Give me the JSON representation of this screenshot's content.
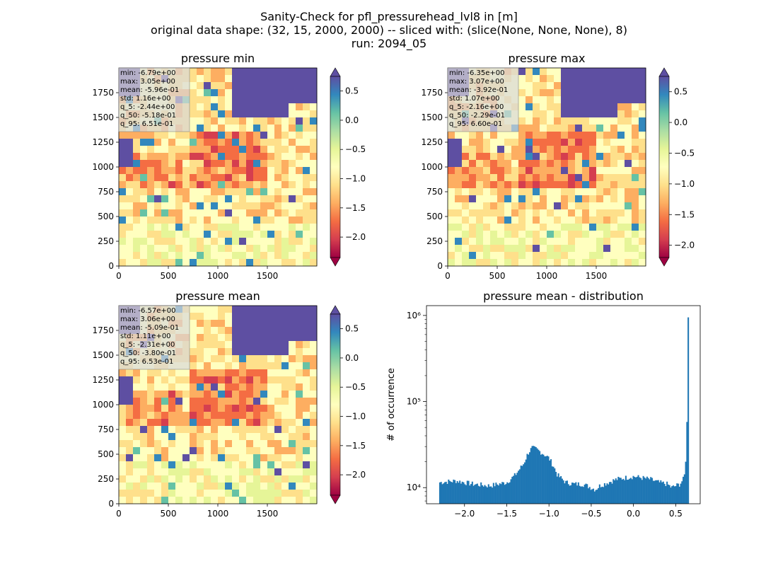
{
  "figure": {
    "suptitle_lines": [
      "Sanity-Check for pfl_pressurehead_lvl8 in [m]",
      "original data shape: (32, 15, 2000, 2000) -- sliced with: (slice(None, None, None), 8)",
      "run: 2094_05"
    ]
  },
  "chart_data": [
    {
      "type": "heatmap",
      "title": "pressure min",
      "colormap": "Spectral",
      "colorbar_ticks": [
        "0.5",
        "0.0",
        "−0.5",
        "−1.0",
        "−1.5",
        "−2.0"
      ],
      "colorbar_range": [
        -2.35,
        0.75
      ],
      "xticks": [
        "0",
        "500",
        "1000",
        "1500"
      ],
      "yticks": [
        "0",
        "250",
        "500",
        "750",
        "1000",
        "1250",
        "1500",
        "1750"
      ],
      "xlim": [
        0,
        2000
      ],
      "ylim": [
        0,
        2000
      ],
      "stats": [
        "min: -6.79e+00",
        "max: 3.05e+00",
        "mean: -5.96e-01",
        "std: 1.16e+00",
        "q_5: -2.44e+00",
        "q_50: -5.18e-01",
        "q_95: 6.51e-01"
      ]
    },
    {
      "type": "heatmap",
      "title": "pressure max",
      "colormap": "Spectral",
      "colorbar_ticks": [
        "0.5",
        "0.0",
        "−0.5",
        "−1.0",
        "−1.5",
        "−2.0"
      ],
      "colorbar_range": [
        -2.2,
        0.75
      ],
      "xticks": [
        "0",
        "500",
        "1000",
        "1500"
      ],
      "yticks": [
        "0",
        "250",
        "500",
        "750",
        "1000",
        "1250",
        "1500",
        "1750"
      ],
      "xlim": [
        0,
        2000
      ],
      "ylim": [
        0,
        2000
      ],
      "stats": [
        "min: -6.35e+00",
        "max: 3.07e+00",
        "mean: -3.92e-01",
        "std: 1.07e+00",
        "q_5: -2.16e+00",
        "q_50: -2.29e-01",
        "q_95: 6.60e-01"
      ]
    },
    {
      "type": "heatmap",
      "title": "pressure mean",
      "colormap": "Spectral",
      "colorbar_ticks": [
        "0.5",
        "0.0",
        "−0.5",
        "−1.0",
        "−1.5",
        "−2.0"
      ],
      "colorbar_range": [
        -2.35,
        0.75
      ],
      "xticks": [
        "0",
        "500",
        "1000",
        "1500"
      ],
      "yticks": [
        "0",
        "250",
        "500",
        "750",
        "1000",
        "1250",
        "1500",
        "1750"
      ],
      "xlim": [
        0,
        2000
      ],
      "ylim": [
        0,
        2000
      ],
      "stats": [
        "min: -6.57e+00",
        "max: 3.06e+00",
        "mean: -5.09e-01",
        "std: 1.11e+00",
        "q_5: -2.31e+00",
        "q_50: -3.80e-01",
        "q_95: 6.53e-01"
      ]
    },
    {
      "type": "bar",
      "title": "pressure mean - distribution",
      "xlabel": "",
      "ylabel": "# of occurrence",
      "yscale": "log",
      "xlim": [
        -2.45,
        0.79
      ],
      "ylim": [
        6500,
        1300000
      ],
      "xticks": [
        "−2.0",
        "−1.5",
        "−1.0",
        "−0.5",
        "0.0",
        "0.5"
      ],
      "yticks": [
        "10⁴",
        "10⁵",
        "10⁶"
      ],
      "bar_color": "#1f77b4",
      "series": [
        {
          "x": [
            -2.3,
            -2.1,
            -1.9,
            -1.7,
            -1.5,
            -1.4,
            -1.3,
            -1.25,
            -1.2,
            -1.15,
            -1.1,
            -1.05,
            -1.0,
            -0.95,
            -0.9,
            -0.8,
            -0.7,
            -0.6,
            -0.5,
            -0.45,
            -0.4,
            -0.3,
            -0.2,
            -0.1,
            0.0,
            0.1,
            0.2,
            0.3,
            0.4,
            0.45,
            0.5,
            0.55,
            0.6,
            0.62,
            0.64,
            0.65
          ],
          "y": [
            11500,
            12000,
            11000,
            10500,
            11500,
            14000,
            19000,
            25000,
            29000,
            28000,
            26000,
            24000,
            22000,
            18000,
            14000,
            11500,
            11000,
            11000,
            10000,
            9500,
            10500,
            11500,
            12500,
            13000,
            13500,
            13000,
            12500,
            11500,
            11000,
            10000,
            10500,
            11000,
            13000,
            20000,
            58000,
            950000
          ]
        }
      ]
    }
  ]
}
